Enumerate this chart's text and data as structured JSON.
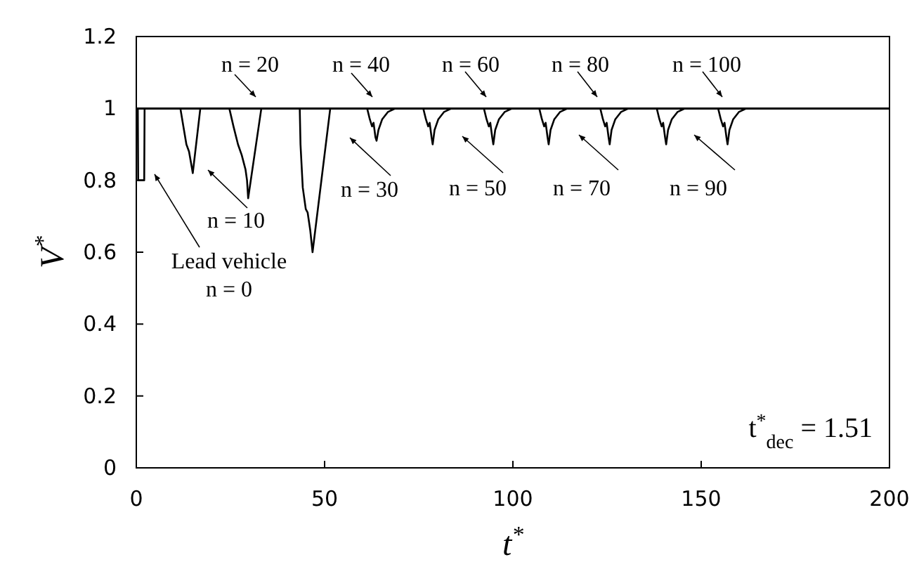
{
  "chart_data": {
    "type": "line",
    "xlabel": "t$^{*}$",
    "ylabel": "V$^{*}$",
    "xlim": [
      0,
      200
    ],
    "xticks": [
      0,
      50,
      100,
      150,
      200
    ],
    "ylim": [
      0,
      1.2
    ],
    "yticks": [
      0,
      0.2,
      0.4,
      0.6,
      0.8,
      1,
      1.2
    ],
    "grid": false,
    "marker": "none",
    "line_style": "solid",
    "series": [
      {
        "color": "#000000",
        "x": [
          0,
          0.4,
          0.5,
          2.1,
          2.2,
          200
        ],
        "values": [
          1,
          1,
          0.8,
          0.8,
          1,
          1
        ]
      },
      {
        "color": "#000000",
        "x": [
          0,
          11.7,
          12.5,
          13.3,
          14.0,
          14.5,
          15.0,
          17.0,
          200
        ],
        "values": [
          1,
          1,
          0.95,
          0.9,
          0.88,
          0.85,
          0.82,
          1,
          1
        ]
      },
      {
        "color": "#000000",
        "x": [
          0,
          24.7,
          25.8,
          27,
          28,
          29,
          29.4,
          29.7,
          33.2,
          200
        ],
        "values": [
          1,
          1,
          0.95,
          0.9,
          0.87,
          0.83,
          0.8,
          0.75,
          1,
          1
        ]
      },
      {
        "color": "#000000",
        "x": [
          0,
          43.4,
          43.6,
          44.2,
          45,
          45.5,
          46.2,
          46.8,
          51.5,
          200
        ],
        "values": [
          1,
          1,
          0.9,
          0.78,
          0.72,
          0.71,
          0.66,
          0.6,
          1,
          1
        ]
      },
      {
        "color": "#000000",
        "x": [
          0,
          61.3,
          62.0,
          62.6,
          63.0,
          63.5,
          63.8,
          64.3,
          65.3,
          66.8,
          68.8,
          200
        ],
        "values": [
          1,
          1,
          0.97,
          0.95,
          0.96,
          0.92,
          0.91,
          0.94,
          0.97,
          0.99,
          1,
          1
        ]
      },
      {
        "color": "#000000",
        "x": [
          0,
          76.2,
          76.9,
          77.5,
          77.9,
          78.4,
          78.7,
          79.2,
          80.2,
          81.7,
          83.7,
          200
        ],
        "values": [
          1,
          1,
          0.97,
          0.95,
          0.96,
          0.92,
          0.9,
          0.94,
          0.97,
          0.99,
          1,
          1
        ]
      },
      {
        "color": "#000000",
        "x": [
          0,
          92.3,
          93.0,
          93.6,
          94.0,
          94.5,
          94.8,
          95.3,
          96.3,
          97.8,
          99.8,
          200
        ],
        "values": [
          1,
          1,
          0.97,
          0.95,
          0.96,
          0.92,
          0.9,
          0.94,
          0.97,
          0.99,
          1,
          1
        ]
      },
      {
        "color": "#000000",
        "x": [
          0,
          107.0,
          107.7,
          108.3,
          108.7,
          109.2,
          109.5,
          110.0,
          111.0,
          112.5,
          114.5,
          200
        ],
        "values": [
          1,
          1,
          0.97,
          0.95,
          0.96,
          0.92,
          0.9,
          0.94,
          0.97,
          0.99,
          1,
          1
        ]
      },
      {
        "color": "#000000",
        "x": [
          0,
          123.2,
          123.9,
          124.5,
          124.9,
          125.4,
          125.7,
          126.2,
          127.2,
          128.7,
          130.7,
          200
        ],
        "values": [
          1,
          1,
          0.97,
          0.95,
          0.96,
          0.92,
          0.9,
          0.94,
          0.97,
          0.99,
          1,
          1
        ]
      },
      {
        "color": "#000000",
        "x": [
          0,
          138.2,
          138.9,
          139.5,
          139.9,
          140.4,
          140.7,
          141.2,
          142.2,
          143.7,
          145.7,
          200
        ],
        "values": [
          1,
          1,
          0.97,
          0.95,
          0.96,
          0.92,
          0.9,
          0.94,
          0.97,
          0.99,
          1,
          1
        ]
      },
      {
        "color": "#000000",
        "x": [
          0,
          154.5,
          155.2,
          155.8,
          156.2,
          156.7,
          157.0,
          157.5,
          158.5,
          160.0,
          162.0,
          200
        ],
        "values": [
          1,
          1,
          0.97,
          0.95,
          0.96,
          0.92,
          0.9,
          0.94,
          0.97,
          0.99,
          1,
          1
        ]
      }
    ],
    "annotations": [
      "Lead vehicle\nn = 0",
      "n = 10",
      "n = 20",
      "n = 30",
      "n = 40",
      "n = 50",
      "n = 60",
      "n = 70",
      "n = 80",
      "n = 90",
      "n = 100",
      "t$^{*}$$_{dec}$ = 1.51"
    ]
  }
}
